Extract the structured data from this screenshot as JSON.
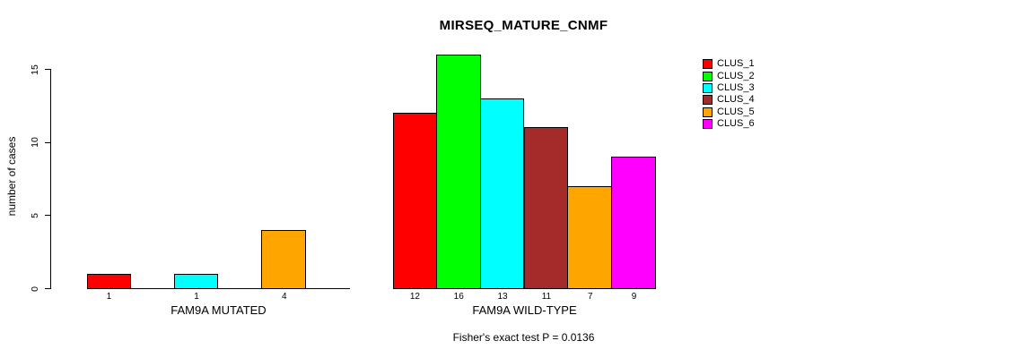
{
  "chart_data": {
    "type": "bar",
    "title": "MIRSEQ_MATURE_CNMF",
    "ylabel": "number of cases",
    "ylim": [
      0,
      15
    ],
    "yticks": [
      0,
      5,
      10,
      15
    ],
    "grid": false,
    "legend_position": "right",
    "clusters": [
      {
        "label": "CLUS_1",
        "color": "#FF0000"
      },
      {
        "label": "CLUS_2",
        "color": "#00FF00"
      },
      {
        "label": "CLUS_3",
        "color": "#00FFFF"
      },
      {
        "label": "CLUS_4",
        "color": "#A52A2A"
      },
      {
        "label": "CLUS_5",
        "color": "#FFA500"
      },
      {
        "label": "CLUS_6",
        "color": "#FF00FF"
      }
    ],
    "groups": [
      {
        "xlabel": "FAM9A MUTATED",
        "values": [
          1,
          0,
          1,
          0,
          4,
          0
        ]
      },
      {
        "xlabel": "FAM9A WILD-TYPE",
        "values": [
          12,
          16,
          13,
          11,
          7,
          9
        ]
      }
    ],
    "footnote": "Fisher's exact test P = 0.0136"
  }
}
